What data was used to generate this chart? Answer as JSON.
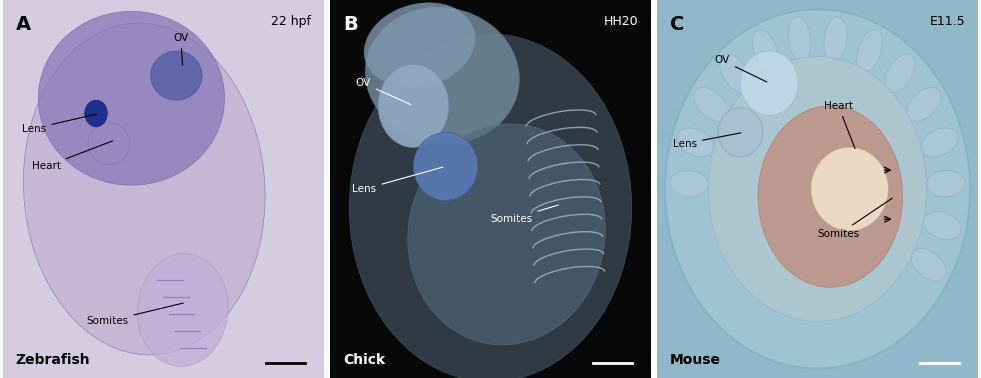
{
  "figure_width": 9.81,
  "figure_height": 3.78,
  "dpi": 100,
  "panels": [
    {
      "label": "A",
      "species": "Zebrafish",
      "stage": "22 hpf",
      "bg_color": "#d4cce0",
      "label_color": "black",
      "stage_color": "black",
      "species_color": "black",
      "scale_bar_color": "black"
    },
    {
      "label": "B",
      "species": "Chick",
      "stage": "HH20",
      "bg_color": "#080808",
      "label_color": "white",
      "stage_color": "white",
      "species_color": "white",
      "scale_bar_color": "white"
    },
    {
      "label": "C",
      "species": "Mouse",
      "stage": "E11.5",
      "bg_color": "#90b8c8",
      "label_color": "black",
      "stage_color": "black",
      "species_color": "black",
      "scale_bar_color": "white"
    }
  ]
}
